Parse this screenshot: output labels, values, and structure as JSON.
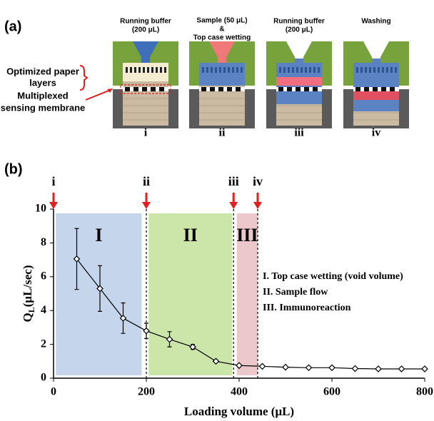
{
  "panel_a": {
    "label": "(a)",
    "annotations": [
      [
        "Optimized paper",
        "layers"
      ],
      [
        "Multiplexed",
        "sensing membrane"
      ]
    ],
    "steps": [
      {
        "header": [
          "Running buffer",
          "(200 μL)"
        ],
        "label": "i"
      },
      {
        "header": [
          "Sample (50 μL)",
          "&",
          "Top case wetting"
        ],
        "label": "ii"
      },
      {
        "header": [
          "Running buffer",
          "(200 μL)"
        ],
        "label": "iii"
      },
      {
        "header": [
          "Washing"
        ],
        "label": "iv"
      }
    ]
  },
  "chart_data": {
    "type": "line",
    "panel_label": "(b)",
    "x_label": "Loading volume (μL)",
    "y_label": [
      "Q",
      "L",
      "(μL/sec)"
    ],
    "x": [
      50,
      100,
      150,
      200,
      250,
      300,
      350,
      400,
      450,
      500,
      550,
      600,
      650,
      700,
      750,
      800
    ],
    "series": [
      {
        "color": "#000000",
        "values": [
          7.05,
          5.3,
          3.55,
          2.8,
          2.3,
          1.85,
          1.0,
          0.75,
          0.7,
          0.65,
          0.62,
          0.62,
          0.57,
          0.55,
          0.55,
          0.55
        ],
        "errors": [
          1.8,
          1.35,
          0.9,
          0.45,
          0.45,
          0.15,
          0.05,
          0.05,
          0.05,
          0.05,
          0.05,
          0.05,
          0.05,
          0.05,
          0.05,
          0.05
        ]
      }
    ],
    "xlim": [
      0,
      800
    ],
    "xticks": [
      0,
      200,
      400,
      600,
      800
    ],
    "ylim": [
      0,
      10
    ],
    "yticks": [
      0,
      2,
      4,
      6,
      8,
      10
    ],
    "regions": [
      {
        "label": "I",
        "x": [
          5,
          190
        ],
        "color": "#c5d5ec"
      },
      {
        "label": "II",
        "x": [
          205,
          385
        ],
        "color": "#cce5a8"
      },
      {
        "label": "III",
        "x": [
          395,
          440
        ],
        "color": "#ecc8cc"
      }
    ],
    "markers": [
      {
        "label": "i",
        "x": 0,
        "dashed": false
      },
      {
        "label": "ii",
        "x": 200,
        "dashed": true
      },
      {
        "label": "iii",
        "x": 388,
        "dashed": true
      },
      {
        "label": "iv",
        "x": 440,
        "dashed": true
      }
    ],
    "legend": [
      "I. Top case wetting (void volume)",
      "II. Sample flow",
      "III. Immunoreaction"
    ]
  }
}
